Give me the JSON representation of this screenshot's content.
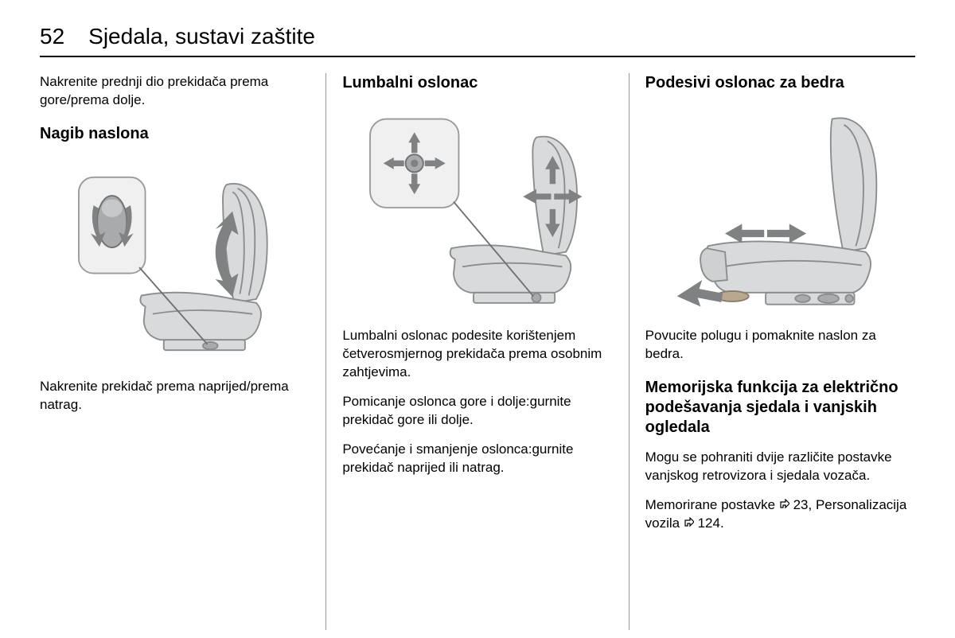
{
  "page_number": "52",
  "page_title": "Sjedala, sustavi zaštite",
  "col1": {
    "intro": "Nakrenite prednji dio prekidača prema gore/prema dolje.",
    "h_nagib": "Nagib naslona",
    "cap_nagib": "Nakrenite prekidač prema naprijed/prema natrag."
  },
  "col2": {
    "h_lumbar": "Lumbalni oslonac",
    "p1": "Lumbalni oslonac podesite korištenjem četverosmjernog prekidača prema osobnim zahtjevima.",
    "p2": "Pomicanje oslonca gore i dolje:gurnite prekidač gore ili dolje.",
    "p3": "Povećanje i smanjenje oslonca:gurnite prekidač naprijed ili natrag."
  },
  "col3": {
    "h_thigh": "Podesivi oslonac za bedra",
    "p_thigh": "Povucite polugu i pomaknite naslon za bedra.",
    "h_memory": "Memorijska funkcija za električno podešavanja sjedala i vanjskih ogledala",
    "p_memory": "Mogu se pohraniti dvije različite postavke vanjskog retrovizora i sjedala vozača.",
    "ref1_pre": "Memorirane postavke ",
    "ref1_num": "23",
    "ref1_sep": ", Personalizacija vozila ",
    "ref2_num": "124",
    "ref_end": "."
  },
  "colors": {
    "seat_fill": "#d9dadb",
    "seat_stroke": "#8b8c8d",
    "arrow_fill": "#808182",
    "callout_bg": "#f0f0f0",
    "callout_stroke": "#9a9a9a",
    "knob_fill": "#a9aaab"
  }
}
